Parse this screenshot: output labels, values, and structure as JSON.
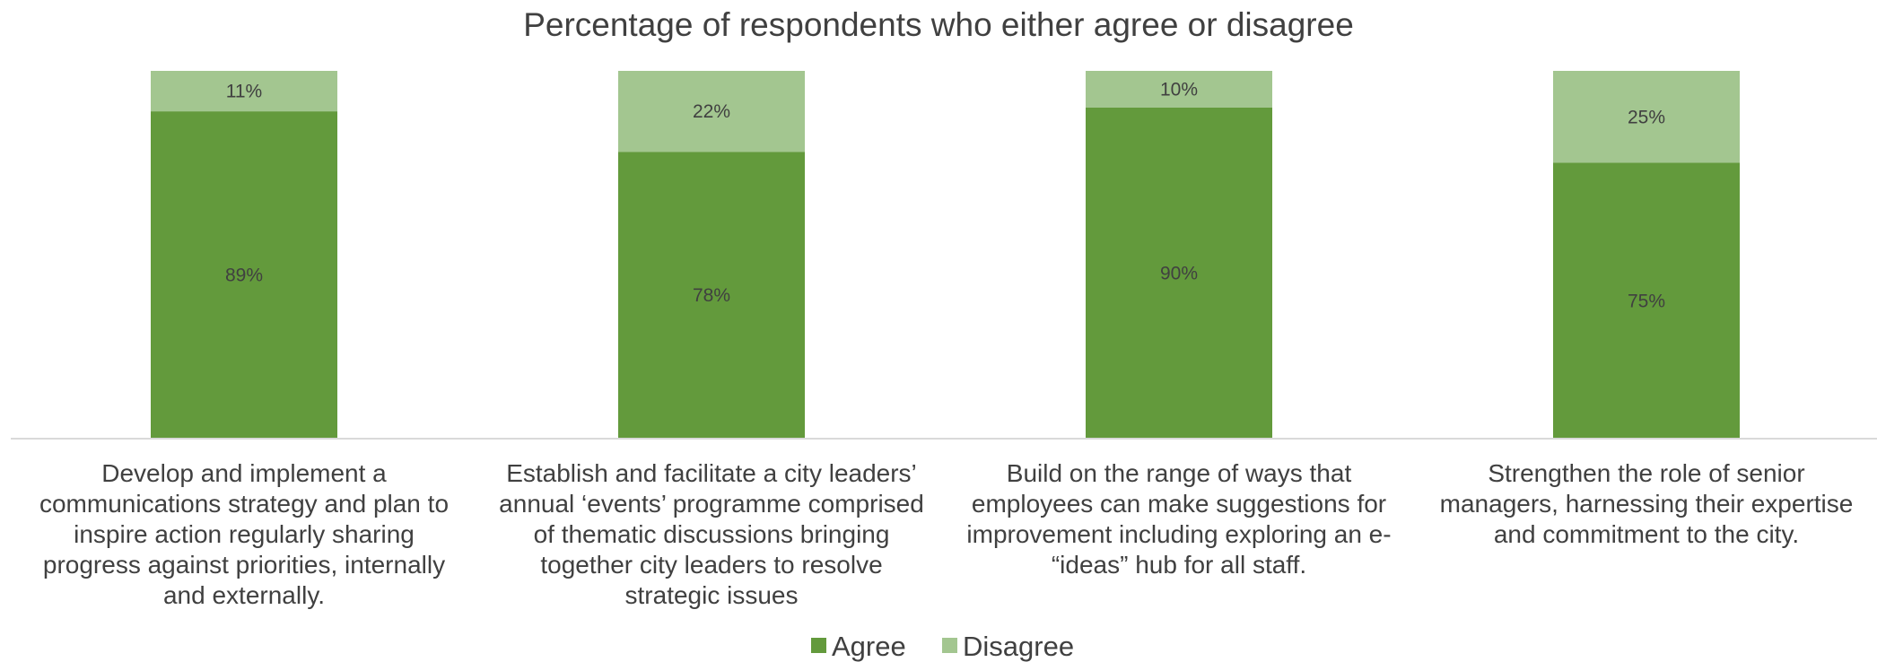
{
  "chart_data": {
    "type": "bar",
    "stacked": true,
    "title": "Percentage of respondents who either agree or disagree",
    "categories": [
      [
        "Develop and implement a",
        "communications strategy and plan to",
        "inspire action regularly sharing",
        "progress against priorities, internally",
        "and externally."
      ],
      [
        "Establish and facilitate a city leaders’",
        "annual ‘events’ programme comprised",
        "of thematic discussions bringing",
        "together city leaders to resolve",
        "strategic issues"
      ],
      [
        "Build on the range of ways that",
        "employees can make suggestions for",
        "improvement including exploring an e-",
        "“ideas” hub for all staff."
      ],
      [
        "Strengthen the role of senior",
        "managers, harnessing their expertise",
        "and commitment to the city."
      ]
    ],
    "series": [
      {
        "name": "Agree",
        "values": [
          89,
          78,
          90,
          75
        ],
        "labels": [
          "89%",
          "78%",
          "90%",
          "75%"
        ],
        "color": "#639a3c"
      },
      {
        "name": "Disagree",
        "values": [
          11,
          22,
          10,
          25
        ],
        "labels": [
          "11%",
          "22%",
          "10%",
          "25%"
        ],
        "color": "#a3c690"
      }
    ],
    "ylim": [
      0,
      100
    ],
    "grid": false,
    "legend_position": "bottom",
    "xlabel": "",
    "ylabel": ""
  },
  "colors": {
    "text": "#404040",
    "axis": "#d9d9d9"
  }
}
